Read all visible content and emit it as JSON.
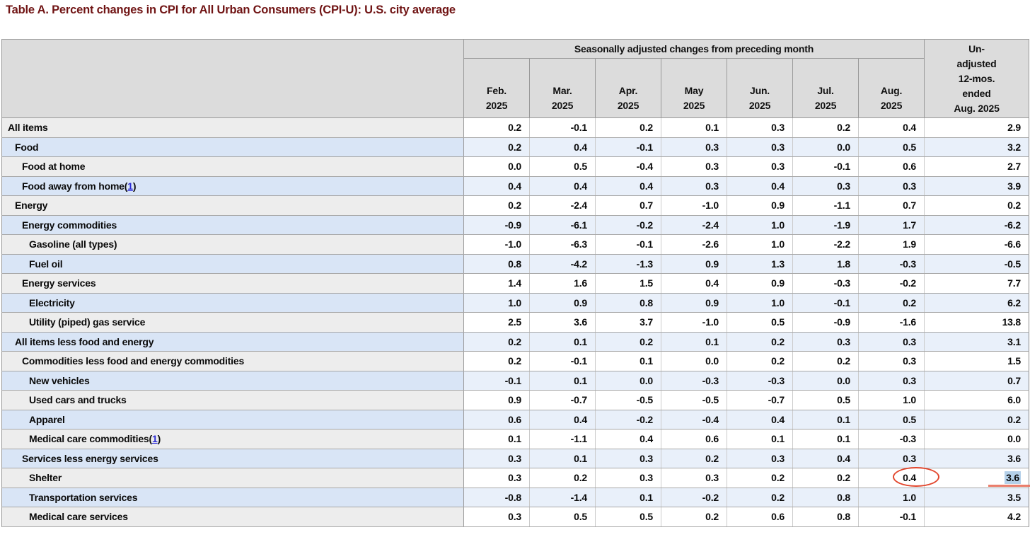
{
  "page": {
    "title": "Table A. Percent changes in CPI for All Urban Consumers (CPI-U): U.S. city average"
  },
  "colors": {
    "title_maroon": "#701414",
    "header_gray": "#dcdcdc",
    "row_gray_label": "#ededed",
    "row_blue_label": "#d9e5f6",
    "row_blue_data": "#e9f0fa",
    "footnote_link": "#2b2bd5",
    "selection_blue": "#b4d0e9",
    "annotation_red": "#e2472e",
    "underline_red": "#e8705c"
  },
  "table": {
    "spanner": "Seasonally adjusted changes from preceding month",
    "unadjusted_header": "Un-\nadjusted\n12-mos.\nended\nAug. 2025",
    "months": [
      {
        "line1": "Feb.",
        "line2": "2025"
      },
      {
        "line1": "Mar.",
        "line2": "2025"
      },
      {
        "line1": "Apr.",
        "line2": "2025"
      },
      {
        "line1": "May",
        "line2": "2025"
      },
      {
        "line1": "Jun.",
        "line2": "2025"
      },
      {
        "line1": "Jul.",
        "line2": "2025"
      },
      {
        "line1": "Aug.",
        "line2": "2025"
      }
    ],
    "rows": [
      {
        "label": "All items",
        "indent": 0,
        "footnote": null,
        "values": [
          "0.2",
          "-0.1",
          "0.2",
          "0.1",
          "0.3",
          "0.2",
          "0.4"
        ],
        "yoy": "2.9"
      },
      {
        "label": "Food",
        "indent": 1,
        "footnote": null,
        "values": [
          "0.2",
          "0.4",
          "-0.1",
          "0.3",
          "0.3",
          "0.0",
          "0.5"
        ],
        "yoy": "3.2"
      },
      {
        "label": "Food at home",
        "indent": 2,
        "footnote": null,
        "values": [
          "0.0",
          "0.5",
          "-0.4",
          "0.3",
          "0.3",
          "-0.1",
          "0.6"
        ],
        "yoy": "2.7"
      },
      {
        "label": "Food away from home",
        "indent": 2,
        "footnote": "1",
        "values": [
          "0.4",
          "0.4",
          "0.4",
          "0.3",
          "0.4",
          "0.3",
          "0.3"
        ],
        "yoy": "3.9"
      },
      {
        "label": "Energy",
        "indent": 1,
        "footnote": null,
        "values": [
          "0.2",
          "-2.4",
          "0.7",
          "-1.0",
          "0.9",
          "-1.1",
          "0.7"
        ],
        "yoy": "0.2"
      },
      {
        "label": "Energy commodities",
        "indent": 2,
        "footnote": null,
        "values": [
          "-0.9",
          "-6.1",
          "-0.2",
          "-2.4",
          "1.0",
          "-1.9",
          "1.7"
        ],
        "yoy": "-6.2"
      },
      {
        "label": "Gasoline (all types)",
        "indent": 3,
        "footnote": null,
        "values": [
          "-1.0",
          "-6.3",
          "-0.1",
          "-2.6",
          "1.0",
          "-2.2",
          "1.9"
        ],
        "yoy": "-6.6"
      },
      {
        "label": "Fuel oil",
        "indent": 3,
        "footnote": null,
        "values": [
          "0.8",
          "-4.2",
          "-1.3",
          "0.9",
          "1.3",
          "1.8",
          "-0.3"
        ],
        "yoy": "-0.5"
      },
      {
        "label": "Energy services",
        "indent": 2,
        "footnote": null,
        "values": [
          "1.4",
          "1.6",
          "1.5",
          "0.4",
          "0.9",
          "-0.3",
          "-0.2"
        ],
        "yoy": "7.7"
      },
      {
        "label": "Electricity",
        "indent": 3,
        "footnote": null,
        "values": [
          "1.0",
          "0.9",
          "0.8",
          "0.9",
          "1.0",
          "-0.1",
          "0.2"
        ],
        "yoy": "6.2"
      },
      {
        "label": "Utility (piped) gas service",
        "indent": 3,
        "footnote": null,
        "values": [
          "2.5",
          "3.6",
          "3.7",
          "-1.0",
          "0.5",
          "-0.9",
          "-1.6"
        ],
        "yoy": "13.8"
      },
      {
        "label": "All items less food and energy",
        "indent": 1,
        "footnote": null,
        "values": [
          "0.2",
          "0.1",
          "0.2",
          "0.1",
          "0.2",
          "0.3",
          "0.3"
        ],
        "yoy": "3.1"
      },
      {
        "label": "Commodities less food and energy commodities",
        "indent": 2,
        "footnote": null,
        "values": [
          "0.2",
          "-0.1",
          "0.1",
          "0.0",
          "0.2",
          "0.2",
          "0.3"
        ],
        "yoy": "1.5"
      },
      {
        "label": "New vehicles",
        "indent": 3,
        "footnote": null,
        "values": [
          "-0.1",
          "0.1",
          "0.0",
          "-0.3",
          "-0.3",
          "0.0",
          "0.3"
        ],
        "yoy": "0.7"
      },
      {
        "label": "Used cars and trucks",
        "indent": 3,
        "footnote": null,
        "values": [
          "0.9",
          "-0.7",
          "-0.5",
          "-0.5",
          "-0.7",
          "0.5",
          "1.0"
        ],
        "yoy": "6.0"
      },
      {
        "label": "Apparel",
        "indent": 3,
        "footnote": null,
        "values": [
          "0.6",
          "0.4",
          "-0.2",
          "-0.4",
          "0.4",
          "0.1",
          "0.5"
        ],
        "yoy": "0.2"
      },
      {
        "label": "Medical care commodities",
        "indent": 3,
        "footnote": "1",
        "values": [
          "0.1",
          "-1.1",
          "0.4",
          "0.6",
          "0.1",
          "0.1",
          "-0.3"
        ],
        "yoy": "0.0"
      },
      {
        "label": "Services less energy services",
        "indent": 2,
        "footnote": null,
        "values": [
          "0.3",
          "0.1",
          "0.3",
          "0.2",
          "0.3",
          "0.4",
          "0.3"
        ],
        "yoy": "3.6"
      },
      {
        "label": "Shelter",
        "indent": 3,
        "footnote": null,
        "values": [
          "0.3",
          "0.2",
          "0.3",
          "0.3",
          "0.2",
          "0.2",
          "0.4"
        ],
        "yoy": "3.6",
        "annotations": {
          "circle_value_index": 6,
          "highlight_yoy": true,
          "underline_yoy": true
        }
      },
      {
        "label": "Transportation services",
        "indent": 3,
        "footnote": null,
        "values": [
          "-0.8",
          "-1.4",
          "0.1",
          "-0.2",
          "0.2",
          "0.8",
          "1.0"
        ],
        "yoy": "3.5"
      },
      {
        "label": "Medical care services",
        "indent": 3,
        "footnote": null,
        "values": [
          "0.3",
          "0.5",
          "0.5",
          "0.2",
          "0.6",
          "0.8",
          "-0.1"
        ],
        "yoy": "4.2"
      }
    ]
  }
}
